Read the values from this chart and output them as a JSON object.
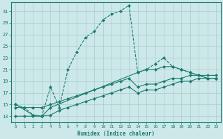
{
  "xlabel": "Humidex (Indice chaleur)",
  "background_color": "#cce8e8",
  "grid_color": "#aacccc",
  "line_color": "#1a7a6e",
  "xlim": [
    -0.5,
    23.5
  ],
  "ylim": [
    12,
    32.5
  ],
  "xticks": [
    0,
    1,
    2,
    3,
    4,
    5,
    6,
    7,
    8,
    9,
    10,
    11,
    12,
    13,
    14,
    15,
    16,
    17,
    18,
    19,
    20,
    21,
    22,
    23
  ],
  "yticks": [
    13,
    15,
    17,
    19,
    21,
    23,
    25,
    27,
    29,
    31
  ],
  "series1_x": [
    0,
    1,
    2,
    3,
    4,
    5,
    6,
    7,
    8,
    9,
    10,
    11,
    12,
    13,
    14,
    15,
    16,
    17,
    18,
    19,
    20,
    21,
    22,
    23
  ],
  "series1_y": [
    15,
    14.5,
    13.2,
    13,
    18,
    14.5,
    21,
    24,
    26.5,
    27.5,
    29.5,
    30.5,
    31,
    32,
    20.5,
    21,
    22,
    23,
    21.5,
    21,
    20.5,
    20,
    19.5,
    19.5
  ],
  "series2_x": [
    0,
    2,
    3,
    4,
    14,
    15,
    16,
    17,
    18,
    19,
    20,
    21,
    22,
    23
  ],
  "series2_y": [
    15,
    13.2,
    13,
    14.5,
    20.5,
    21,
    21,
    21.5,
    21.5,
    21,
    20.5,
    20,
    19.5,
    19.5
  ],
  "series3_x": [
    0,
    1,
    2,
    3,
    4,
    5,
    6,
    7,
    8,
    9,
    10,
    11,
    12,
    13,
    14,
    15,
    16,
    17,
    18,
    19,
    20,
    21,
    22,
    23
  ],
  "series3_y": [
    13,
    13,
    13,
    13,
    13.2,
    14,
    14.5,
    15,
    15.5,
    16,
    16.5,
    17,
    17.5,
    18,
    17,
    17.5,
    17.5,
    18,
    18.5,
    19,
    19,
    19.5,
    19.5,
    19.5
  ],
  "series4_x": [
    0,
    1,
    2,
    3,
    4,
    5,
    6,
    7,
    8,
    9,
    10,
    11,
    12,
    13,
    14,
    15,
    16,
    17,
    18,
    19,
    20,
    21,
    22,
    23
  ],
  "series4_y": [
    14.5,
    14.5,
    14.5,
    14.5,
    15,
    15.5,
    16,
    16.5,
    17,
    17.5,
    18,
    18.5,
    19,
    19.5,
    18,
    18.5,
    18.5,
    19,
    19.5,
    19.5,
    20,
    20,
    20,
    20
  ]
}
